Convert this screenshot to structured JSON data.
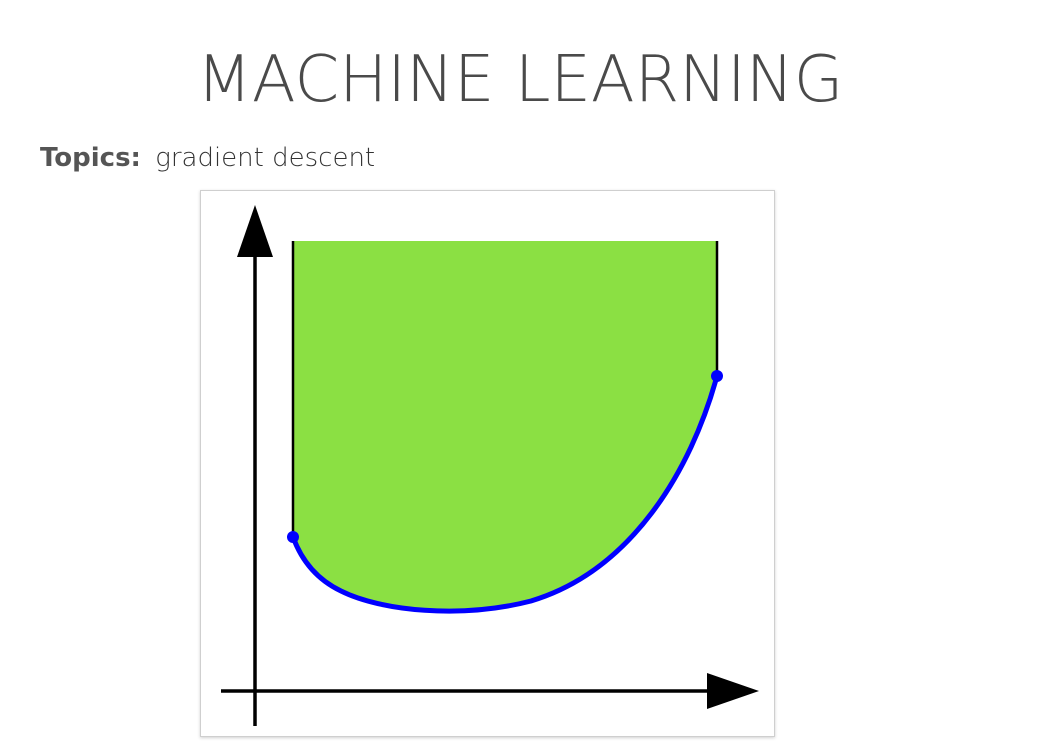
{
  "slide": {
    "title": "MACHINE LEARNING",
    "topics_label": "Topics:",
    "topics_value": "gradient descent"
  },
  "figure": {
    "region_fill": "#8BE043",
    "curve_color": "#0000FF",
    "axis_color": "#000000",
    "boundary_color": "#000000"
  }
}
